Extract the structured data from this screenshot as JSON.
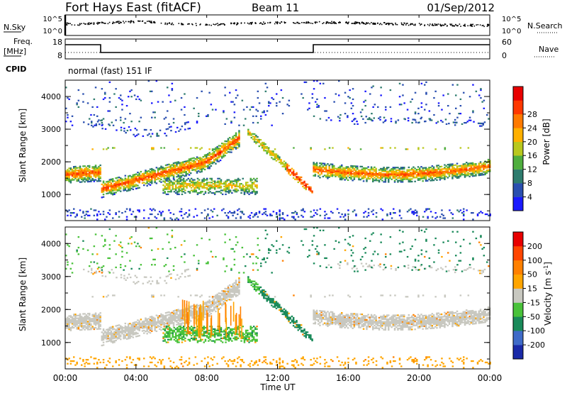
{
  "header": {
    "station": "Fort Hays East (fitACF)",
    "beam": "Beam 11",
    "date": "01/Sep/2012"
  },
  "panels": {
    "noise": {
      "left_label": "N.Sky",
      "right_label": "N.Search",
      "left_ticks": [
        "10^5",
        "10^0"
      ],
      "right_ticks": [
        "10^5",
        "10^0"
      ]
    },
    "freq": {
      "left_label_1": "Freq.",
      "left_label_2": "[MHz]",
      "right_label": "Nave",
      "left_ticks": [
        "18",
        "8"
      ],
      "right_ticks": [
        "60",
        "0"
      ]
    },
    "cpid": {
      "label": "CPID",
      "text": "normal (fast) 151 IF"
    }
  },
  "chart_data": [
    {
      "type": "heatmap",
      "name": "power",
      "ylabel": "Slant Range [km]",
      "ylim": [
        200,
        4500
      ],
      "yticks": [
        "1000",
        "2000",
        "3000",
        "4000"
      ],
      "xlim": [
        0,
        24
      ],
      "colorbar": {
        "label": "Power [dB]",
        "ticks": [
          "4",
          "8",
          "12",
          "16",
          "20",
          "24",
          "28"
        ],
        "colors": [
          "#1a1aff",
          "#2a4fb0",
          "#2e7c6e",
          "#4fae3e",
          "#b9c81e",
          "#ffb000",
          "#ff7a00",
          "#ff3800",
          "#e80000"
        ]
      }
    },
    {
      "type": "heatmap",
      "name": "velocity",
      "ylabel": "Slant Range [km]",
      "ylim": [
        200,
        4500
      ],
      "yticks": [
        "1000",
        "2000",
        "3000",
        "4000"
      ],
      "xlim": [
        0,
        24
      ],
      "xlabel": "Time UT",
      "xticks": [
        "00:00",
        "04:00",
        "08:00",
        "12:00",
        "16:00",
        "20:00",
        "00:00"
      ],
      "colorbar": {
        "label": "Velocity [m s",
        "label_sup": "-1",
        "label_end": "]",
        "ticks": [
          "200",
          "100",
          "50",
          "15",
          "-15",
          "-50",
          "-100",
          "-200"
        ],
        "colors": [
          "#1a2aa8",
          "#3f6bc8",
          "#1a8a5a",
          "#49c23a",
          "#c8c8c0",
          "#ffa500",
          "#ff8000",
          "#ff4500",
          "#e80000"
        ]
      }
    }
  ]
}
